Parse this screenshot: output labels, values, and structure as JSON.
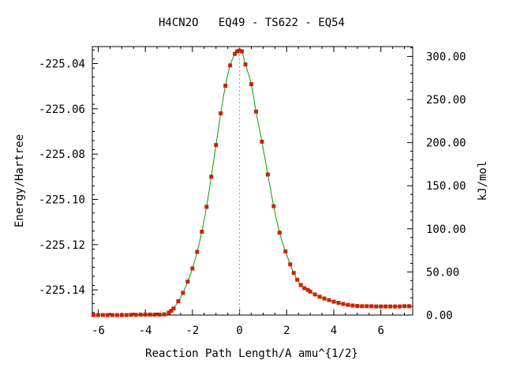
{
  "chart_data": {
    "type": "line",
    "title": "H4CN2O   EQ49 - TS622 - EQ54",
    "xlabel": "Reaction Path Length/A amu^{1/2}",
    "ylabel_left": "Energy/Hartree",
    "ylabel_right": "kJ/mol",
    "xlim": [
      -6.25,
      7.35
    ],
    "ylim_left": [
      -225.1511,
      -225.0325
    ],
    "ylim_right": [
      0.0,
      311.4
    ],
    "x_ticks": [
      "-6",
      "-4",
      "-2",
      "0",
      "2",
      "4",
      "6"
    ],
    "y_ticks_left": [
      "-225.04",
      "-225.06",
      "-225.08",
      "-225.10",
      "-225.12",
      "-225.14"
    ],
    "y_ticks_right": [
      "0.00",
      "50.00",
      "100.00",
      "150.00",
      "200.00",
      "250.00",
      "300.00"
    ],
    "ts_marker_x": 0.0,
    "series": [
      {
        "style": "line+points",
        "line_color": "#00a000",
        "marker_color": "#cc2200",
        "x": [
          -6.2,
          -6.0,
          -5.8,
          -5.6,
          -5.4,
          -5.2,
          -5.0,
          -4.8,
          -4.6,
          -4.4,
          -4.2,
          -4.0,
          -3.8,
          -3.6,
          -3.4,
          -3.2,
          -3.0,
          -2.9,
          -2.8,
          -2.6,
          -2.4,
          -2.2,
          -2.0,
          -1.8,
          -1.6,
          -1.4,
          -1.2,
          -1.0,
          -0.8,
          -0.6,
          -0.4,
          -0.2,
          -0.1,
          0.0,
          0.1,
          0.25,
          0.5,
          0.7,
          0.95,
          1.2,
          1.45,
          1.7,
          1.95,
          2.15,
          2.3,
          2.45,
          2.6,
          2.75,
          2.9,
          3.0,
          3.2,
          3.4,
          3.6,
          3.8,
          4.0,
          4.2,
          4.4,
          4.6,
          4.8,
          5.0,
          5.2,
          5.4,
          5.6,
          5.8,
          6.0,
          6.2,
          6.4,
          6.6,
          6.8,
          7.0,
          7.2
        ],
        "y": [
          -225.1511,
          -225.1511,
          -225.1511,
          -225.1511,
          -225.1511,
          -225.1511,
          -225.1511,
          -225.1511,
          -225.151,
          -225.151,
          -225.1509,
          -225.1509,
          -225.1509,
          -225.1509,
          -225.1509,
          -225.1508,
          -225.15,
          -225.1492,
          -225.1482,
          -225.145,
          -225.1413,
          -225.1363,
          -225.1305,
          -225.1232,
          -225.1143,
          -225.1033,
          -225.09,
          -225.076,
          -225.062,
          -225.0498,
          -225.0408,
          -225.0357,
          -225.0346,
          -225.0343,
          -225.0346,
          -225.0404,
          -225.0491,
          -225.0612,
          -225.0745,
          -225.089,
          -225.103,
          -225.1147,
          -225.123,
          -225.1287,
          -225.1325,
          -225.1355,
          -225.1378,
          -225.1392,
          -225.14,
          -225.1407,
          -225.142,
          -225.143,
          -225.1438,
          -225.1445,
          -225.1452,
          -225.1457,
          -225.1462,
          -225.1466,
          -225.1469,
          -225.1471,
          -225.1472,
          -225.1472,
          -225.1472,
          -225.1473,
          -225.1473,
          -225.1473,
          -225.1473,
          -225.1473,
          -225.1473,
          -225.1472,
          -225.1472
        ]
      }
    ]
  }
}
